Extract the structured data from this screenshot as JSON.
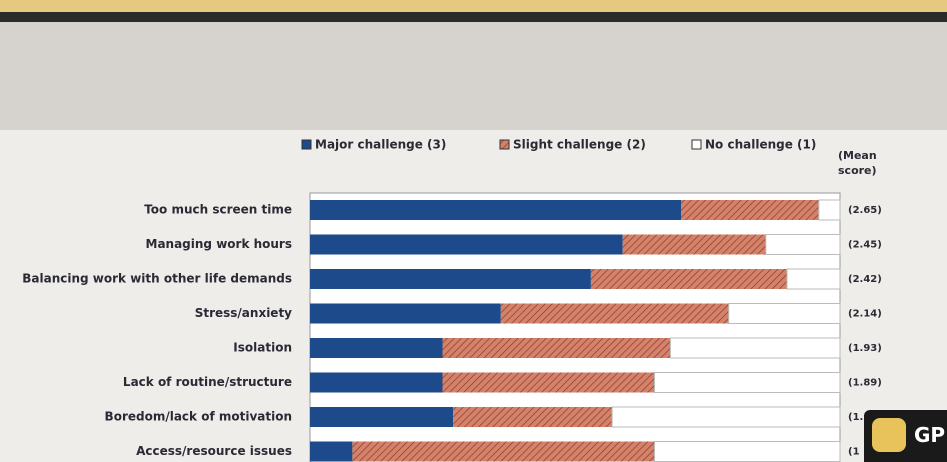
{
  "chart_data": {
    "type": "stacked_barh",
    "categories": [
      "Too much screen time",
      "Managing work hours",
      "Balancing work with other life demands",
      "Stress/anxiety",
      "Isolation",
      "Lack of routine/structure",
      "Boredom/lack of motivation",
      "Access/resource issues"
    ],
    "series": [
      {
        "name": "Major challenge (3)",
        "color": "#1d4a8a",
        "values": [
          70,
          59,
          53,
          36,
          25,
          25,
          27,
          8
        ]
      },
      {
        "name": "Slight challenge (2)",
        "color": "#d4826a",
        "values": [
          26,
          27,
          37,
          43,
          43,
          40,
          30,
          57
        ]
      },
      {
        "name": "No challenge (1)",
        "color": "#ffffff",
        "values": [
          4,
          14,
          10,
          21,
          32,
          35,
          43,
          35
        ]
      }
    ],
    "xlim": [
      0,
      100
    ],
    "side_header": "(Mean score)",
    "side_labels": [
      "(2.65)",
      "(2.45)",
      "(2.42)",
      "(2.14)",
      "(1.93)",
      "(1.89)",
      "(1.",
      "(1"
    ]
  },
  "overlay": {
    "label": "GP"
  }
}
